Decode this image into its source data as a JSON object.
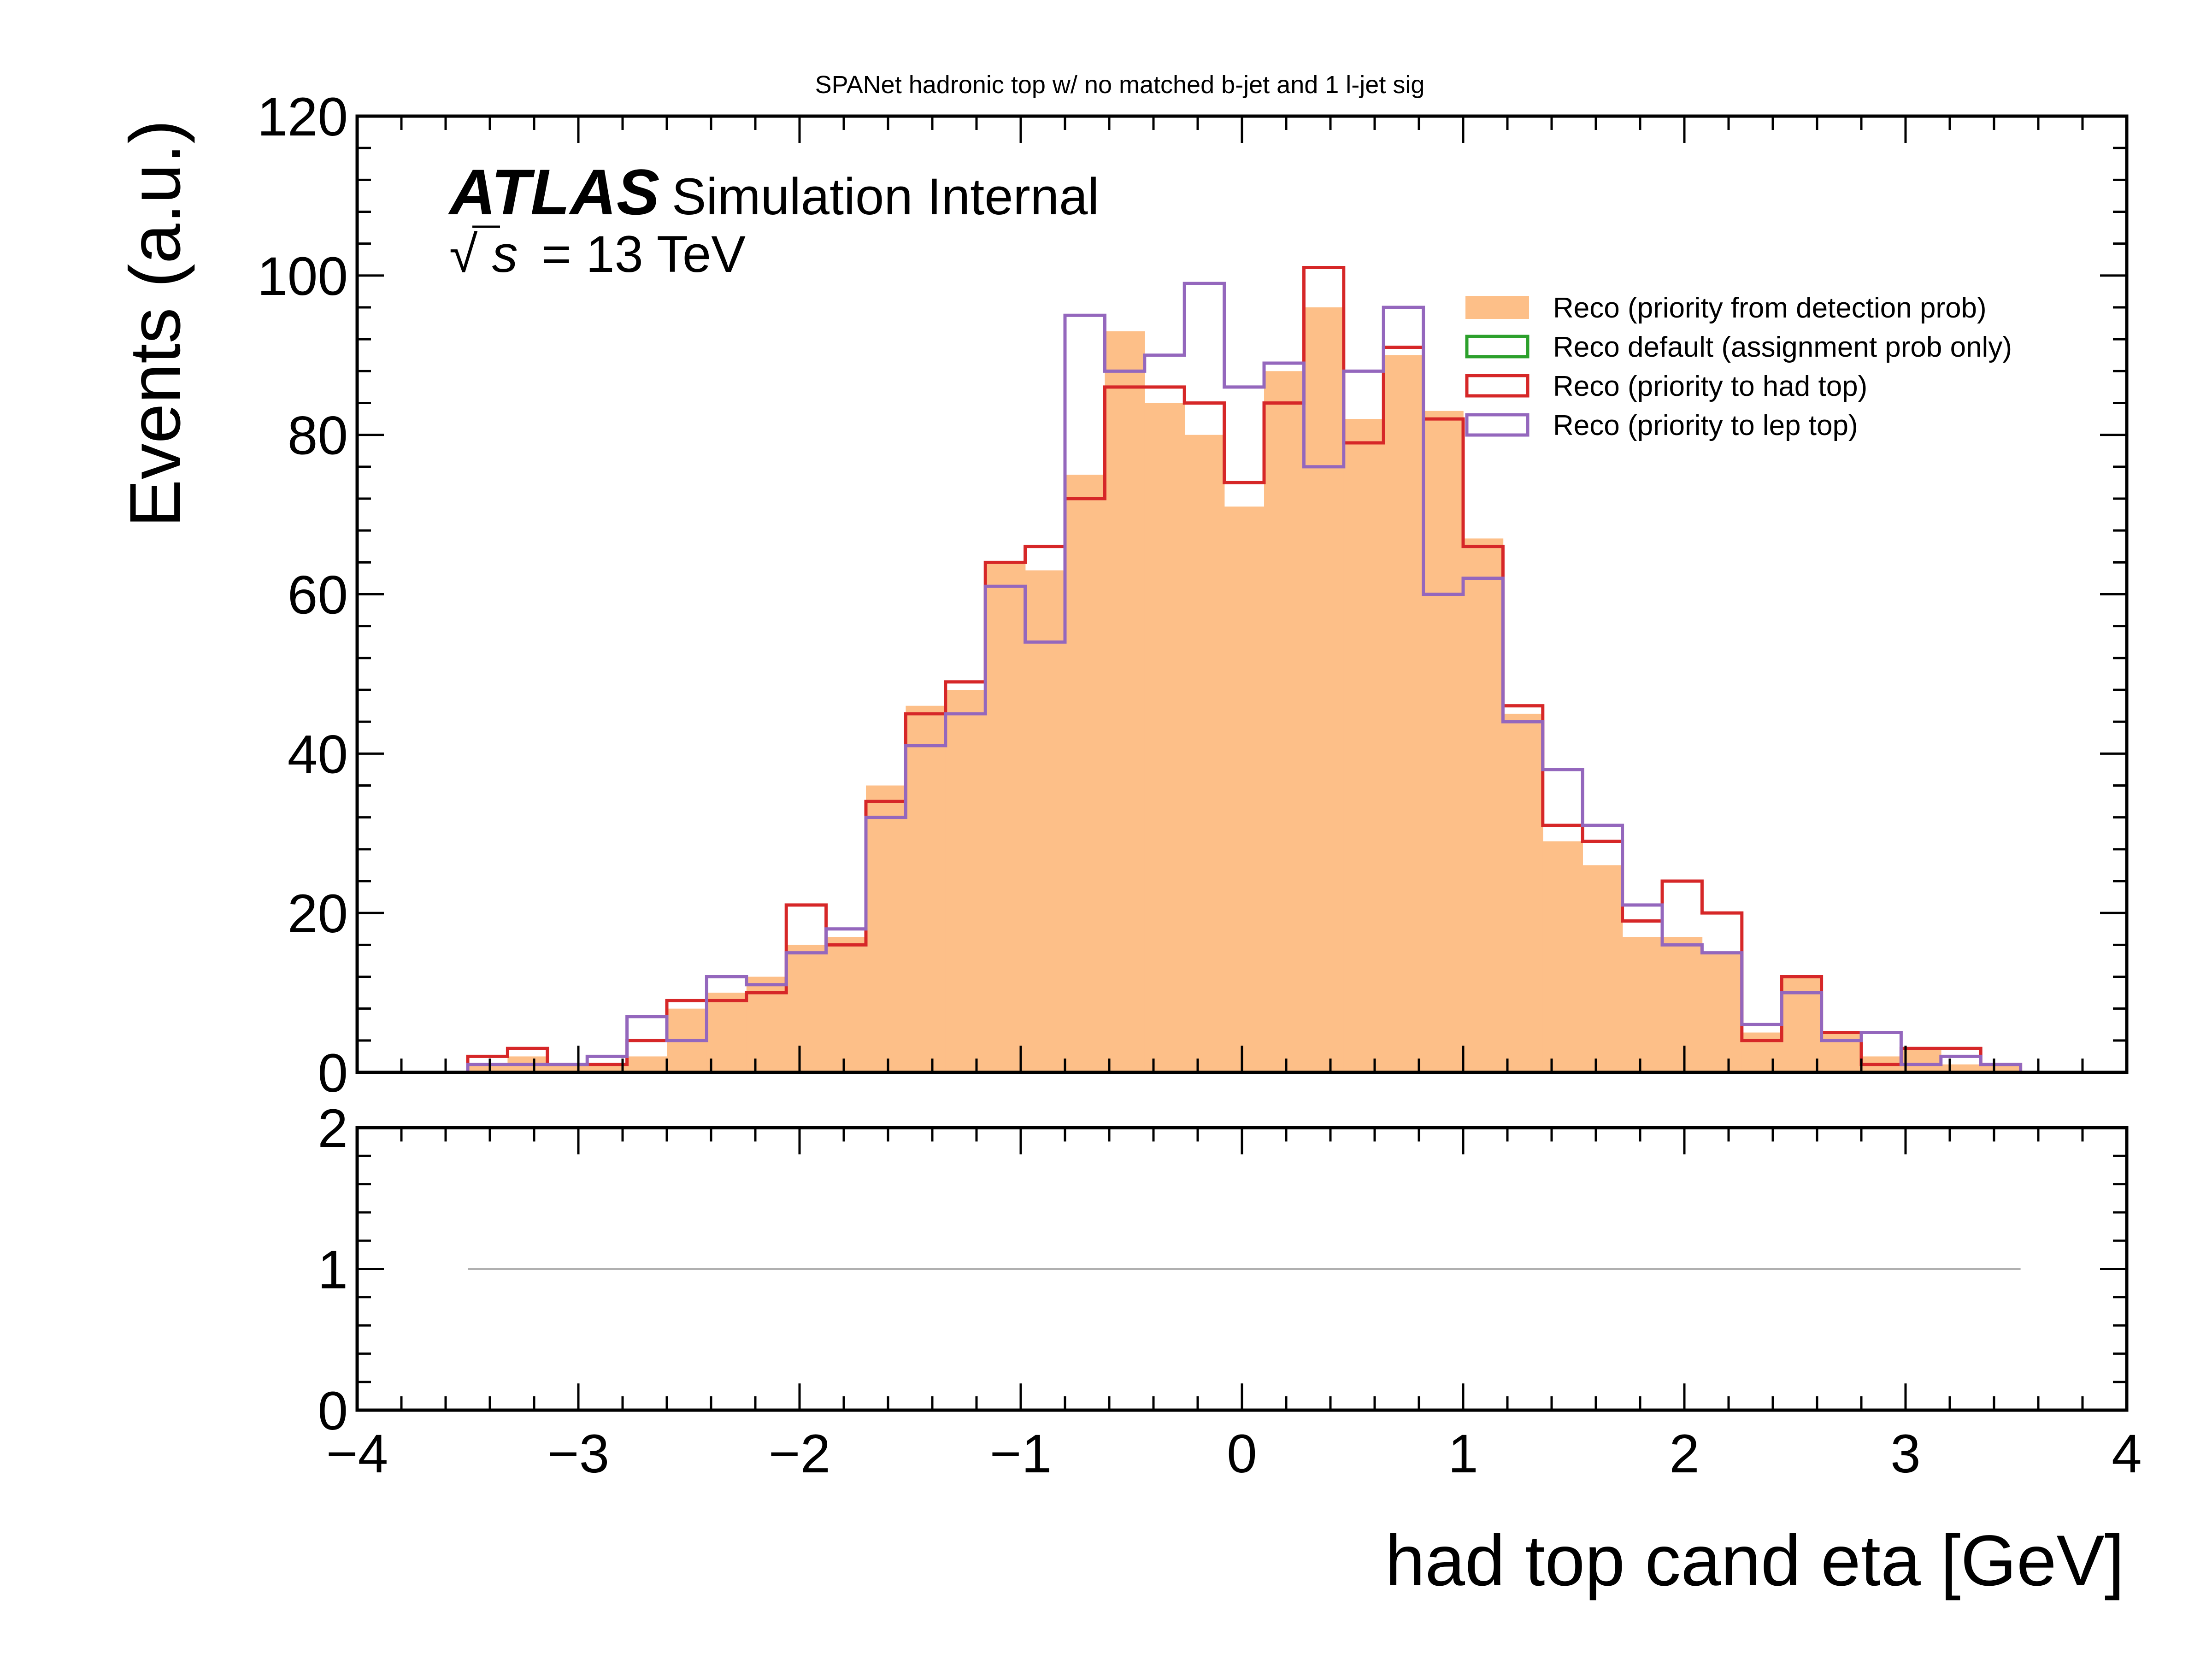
{
  "chart_data": [
    {
      "type": "histogram",
      "title": "SPANet hadronic top w/ no matched b-jet and 1 l-jet sig",
      "xlabel": "had top cand eta [GeV]",
      "ylabel": "Events (a.u.)",
      "xlim": [
        -4,
        4
      ],
      "ylim": [
        0,
        120
      ],
      "x_ticks": [
        "−4",
        "−3",
        "−2",
        "−1",
        "0",
        "1",
        "2",
        "3",
        "4"
      ],
      "y_ticks": [
        "0",
        "20",
        "40",
        "60",
        "80",
        "100",
        "120"
      ],
      "bin_edges": [
        -3.5,
        -3.32,
        -3.14,
        -2.96,
        -2.78,
        -2.6,
        -2.42,
        -2.24,
        -2.06,
        -1.88,
        -1.7,
        -1.52,
        -1.34,
        -1.16,
        -0.98,
        -0.8,
        -0.62,
        -0.44,
        -0.26,
        -0.08,
        0.1,
        0.28,
        0.46,
        0.64,
        0.82,
        1.0,
        1.18,
        1.36,
        1.54,
        1.72,
        1.9,
        2.08,
        2.26,
        2.44,
        2.62,
        2.8,
        2.98,
        3.16,
        3.34,
        3.52
      ],
      "legend_position": "upper-right",
      "series": [
        {
          "name": "Reco (priority from detection prob)",
          "style": "filled",
          "color": "#fdbf88",
          "values": [
            1,
            2,
            1,
            1,
            2,
            8,
            10,
            12,
            16,
            17,
            36,
            46,
            48,
            64,
            63,
            75,
            93,
            84,
            80,
            71,
            88,
            96,
            82,
            90,
            83,
            67,
            45,
            29,
            26,
            17,
            17,
            15,
            5,
            12,
            5,
            2,
            3,
            1,
            1
          ]
        },
        {
          "name": "Reco default (assignment prob only)",
          "style": "step",
          "color": "#2ca02c",
          "values": []
        },
        {
          "name": "Reco (priority to had top)",
          "style": "step",
          "color": "#d62728",
          "values": [
            2,
            3,
            1,
            1,
            4,
            9,
            9,
            10,
            21,
            16,
            34,
            45,
            49,
            64,
            66,
            72,
            86,
            86,
            84,
            74,
            84,
            101,
            79,
            91,
            82,
            66,
            46,
            31,
            29,
            19,
            24,
            20,
            4,
            12,
            5,
            1,
            3,
            3,
            1
          ]
        },
        {
          "name": "Reco (priority to lep top)",
          "style": "step",
          "color": "#9467bd",
          "values": [
            1,
            1,
            1,
            2,
            7,
            4,
            12,
            11,
            15,
            18,
            32,
            41,
            45,
            61,
            54,
            95,
            88,
            90,
            99,
            86,
            89,
            76,
            88,
            96,
            60,
            62,
            44,
            38,
            31,
            21,
            16,
            15,
            6,
            10,
            4,
            5,
            1,
            2,
            1
          ]
        }
      ]
    },
    {
      "type": "line",
      "panel": "ratio",
      "xlabel": "had top cand eta [GeV]",
      "xlim": [
        -4,
        4
      ],
      "ylim": [
        0,
        2
      ],
      "y_ticks": [
        "0",
        "1",
        "2"
      ],
      "reference_line": 1,
      "reference_color": "#b0b0b0"
    }
  ],
  "atlas_label": {
    "brand": "ATLAS",
    "text": "Simulation Internal",
    "energy_prefix": "√",
    "energy_symbol": "s",
    "energy_value": "= 13 TeV"
  }
}
